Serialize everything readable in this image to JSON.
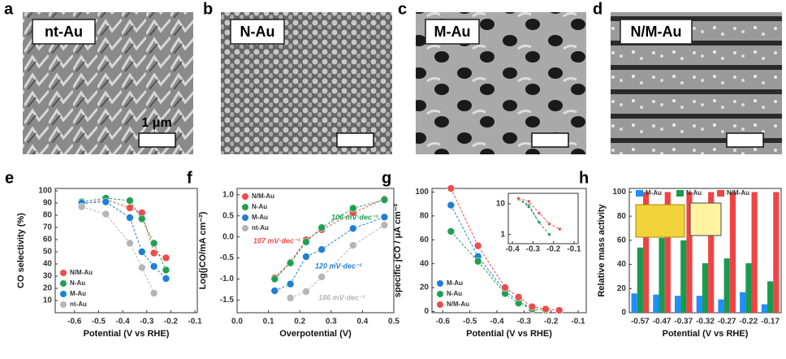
{
  "panels": [
    {
      "letter": "a",
      "label": "nt-Au",
      "scale_bar": "1 μm"
    },
    {
      "letter": "b",
      "label": "N-Au"
    },
    {
      "letter": "c",
      "label": "M-Au"
    },
    {
      "letter": "d",
      "label": "N/M-Au"
    }
  ],
  "chart_data": [
    {
      "type": "line",
      "letter": "e",
      "x_label": "Potential (V vs RHE)",
      "y_label": "CO selectivity (%)",
      "x": [
        -0.57,
        -0.47,
        -0.37,
        -0.32,
        -0.27,
        -0.22
      ],
      "series": [
        {
          "name": "N/M-Au",
          "color": "#ee4b4b",
          "values": [
            89,
            93,
            86,
            82,
            49,
            45
          ]
        },
        {
          "name": "N-Au",
          "color": "#21a052",
          "values": [
            91,
            94,
            92,
            77,
            57,
            35
          ]
        },
        {
          "name": "M-Au",
          "color": "#1f7fd6",
          "values": [
            90,
            91,
            78,
            50,
            38,
            28
          ]
        },
        {
          "name": "nt-Au",
          "color": "#b5b5b5",
          "values": [
            87,
            81,
            57,
            37,
            16,
            null
          ]
        }
      ],
      "xlim": [
        -0.68,
        -0.09
      ],
      "ylim": [
        0,
        102
      ],
      "xticks": [
        -0.6,
        -0.5,
        -0.4,
        -0.3,
        -0.2,
        -0.1
      ],
      "yticks": [
        10,
        20,
        30,
        40,
        50,
        60,
        70,
        80,
        90,
        100
      ],
      "legend": "lower left"
    },
    {
      "type": "line",
      "letter": "f",
      "x_label": "Overpotential (V)",
      "y_label": "Log(jCO/mA cm⁻²)",
      "x": [
        0.12,
        0.17,
        0.22,
        0.27,
        0.37,
        0.47
      ],
      "series": [
        {
          "name": "N/M-Au",
          "color": "#ee4b4b",
          "values": [
            -0.97,
            -0.6,
            -0.07,
            0.17,
            0.57,
            0.9
          ]
        },
        {
          "name": "N-Au",
          "color": "#21a052",
          "values": [
            -1.0,
            -0.62,
            -0.12,
            0.22,
            0.68,
            0.88
          ]
        },
        {
          "name": "M-Au",
          "color": "#1f7fd6",
          "values": [
            -1.28,
            -1.12,
            -0.47,
            -0.3,
            0.2,
            0.47
          ]
        },
        {
          "name": "nt-Au",
          "color": "#b5b5b5",
          "values": [
            null,
            -1.45,
            -1.3,
            -0.95,
            -0.2,
            0.28
          ]
        }
      ],
      "annotations": [
        "107 mV·dec⁻¹",
        "106 mV·dec⁻¹",
        "120 mV·dec⁻¹",
        "186 mV·dec⁻¹"
      ],
      "annotation_colors": [
        "#ee4b4b",
        "#21a052",
        "#1f7fd6",
        "#b5b5b5"
      ],
      "xlim": [
        0,
        0.5
      ],
      "ylim": [
        -1.8,
        1.15
      ],
      "xticks": [
        {
          "value": 0,
          "label": "0.0"
        },
        0.1,
        0.2,
        0.3,
        0.4,
        0.5
      ],
      "yticks": [
        -1.5,
        {
          "value": -1,
          "label": "-1.0"
        },
        -0.5,
        {
          "value": 0,
          "label": "0.0"
        },
        0.5,
        {
          "value": 1,
          "label": "1.0"
        }
      ],
      "legend": "upper left"
    },
    {
      "type": "line",
      "letter": "g",
      "x_label": "Potential (V vs RHE)",
      "y_label": "specific jCO / μA cm⁻²",
      "x": [
        -0.57,
        -0.47,
        -0.37,
        -0.32,
        -0.27,
        -0.22,
        -0.17
      ],
      "series": [
        {
          "name": "M-Au",
          "color": "#1f7fd6",
          "values": [
            89,
            46,
            17,
            9,
            2,
            null,
            null
          ]
        },
        {
          "name": "N-Au",
          "color": "#21a052",
          "values": [
            67,
            42,
            15,
            7,
            2,
            1,
            null
          ]
        },
        {
          "name": "N/M-Au",
          "color": "#ee4b4b",
          "values": [
            103,
            55,
            20,
            12,
            4,
            2,
            1
          ]
        }
      ],
      "xlim": [
        -0.64,
        -0.07
      ],
      "ylim": [
        -1,
        103
      ],
      "xticks": [
        -0.6,
        -0.5,
        -0.4,
        -0.3,
        -0.2,
        -0.1
      ],
      "yticks": [
        0,
        20,
        40,
        60,
        80,
        100
      ],
      "legend": "lower left"
    },
    {
      "type": "line",
      "log_y": true,
      "x": [
        -0.37,
        -0.32,
        -0.27,
        -0.22,
        -0.17
      ],
      "series": [
        {
          "name": "M-Au",
          "color": "#1f7fd6",
          "values": [
            15,
            9,
            2.5,
            null,
            null
          ]
        },
        {
          "name": "N-Au",
          "color": "#21a052",
          "values": [
            14,
            8,
            2.5,
            1,
            null
          ]
        },
        {
          "name": "N/M-Au",
          "color": "#ee4b4b",
          "values": [
            15,
            12,
            5,
            2.2,
            1.5
          ]
        }
      ],
      "xlim": [
        -0.42,
        -0.08
      ],
      "ylim": [
        0.5,
        22
      ],
      "xticks": [
        -0.4,
        -0.3,
        -0.2,
        -0.1
      ],
      "yticks": [
        1,
        10
      ]
    },
    {
      "type": "bar",
      "letter": "h",
      "x_label": "Potential (V vs RHE)",
      "y_label": "Relative mass activity",
      "categories": [
        "-0.57",
        "-0.47",
        "-0.37",
        "-0.32",
        "-0.27",
        "-0.22",
        "-0.17"
      ],
      "series": [
        {
          "name": "M-Au",
          "color": "#1e8fff",
          "values": [
            16,
            15,
            14,
            14,
            11,
            17,
            7
          ]
        },
        {
          "name": "N-Au",
          "color": "#1a9a4e",
          "values": [
            54,
            62,
            60,
            41,
            45,
            41,
            26
          ]
        },
        {
          "name": "N/M-Au",
          "color": "#f04444",
          "values": [
            100,
            100,
            100,
            100,
            100,
            100,
            100
          ]
        }
      ],
      "ylim": [
        0,
        103
      ],
      "yticks": [
        0,
        20,
        40,
        60,
        80,
        100
      ],
      "legend": "top"
    }
  ]
}
